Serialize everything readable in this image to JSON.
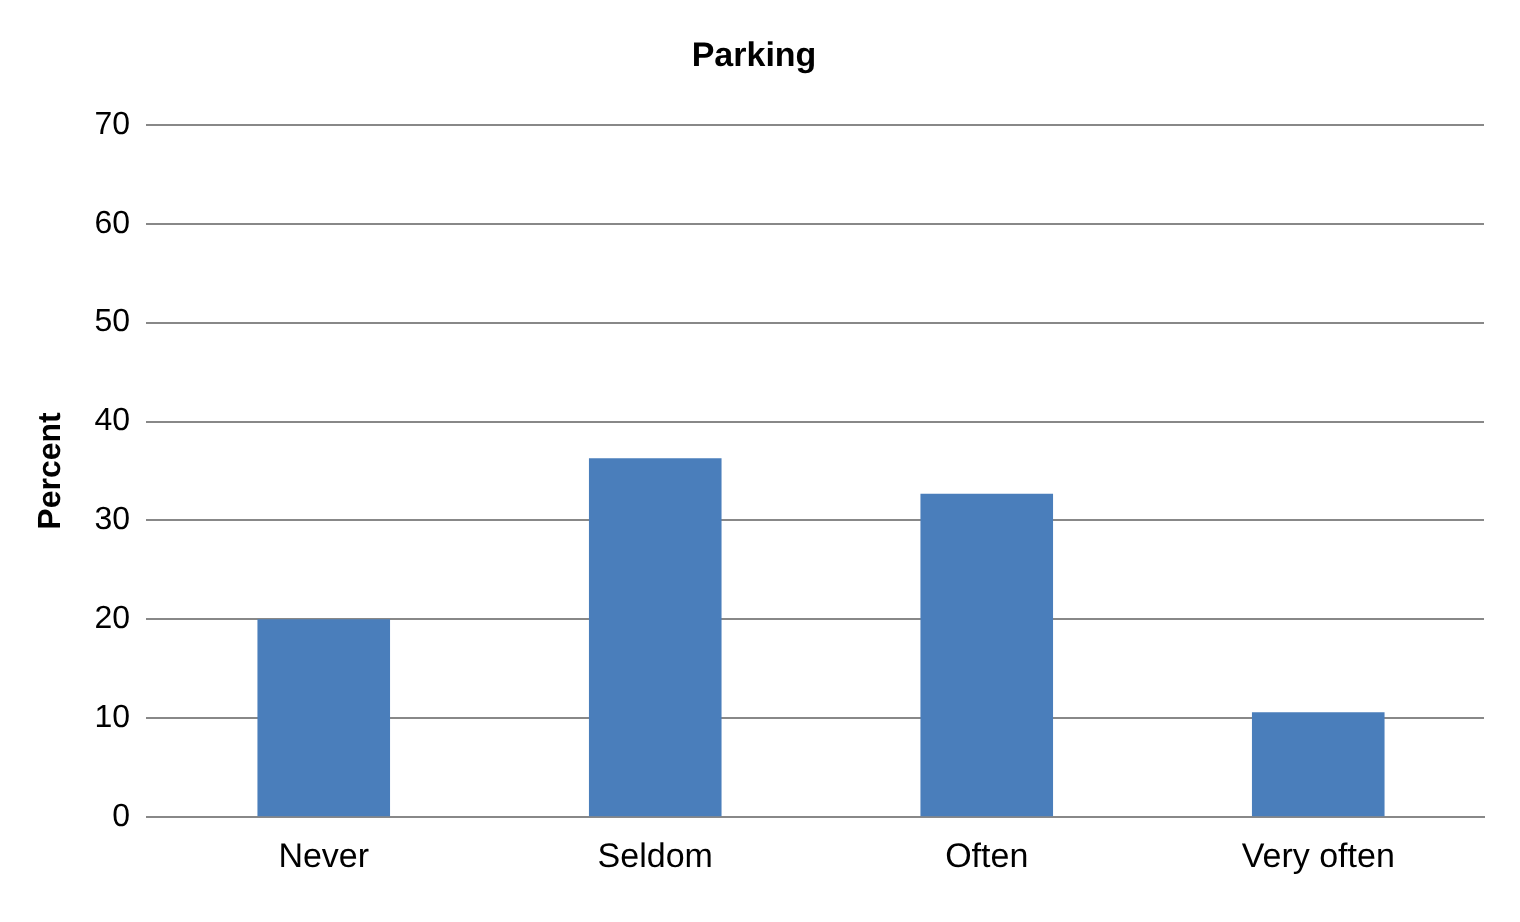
{
  "chart_data": {
    "type": "bar",
    "title": "Parking",
    "ylabel": "Percent",
    "categories": [
      "Never",
      "Seldom",
      "Often",
      "Very often"
    ],
    "values": [
      20,
      36.3,
      32.7,
      10.6
    ],
    "color": "#4a7ebb",
    "ylim": [
      0,
      70
    ],
    "yticks": [
      0,
      10,
      20,
      30,
      40,
      50,
      60,
      70
    ],
    "grid": "y",
    "legend": false
  }
}
